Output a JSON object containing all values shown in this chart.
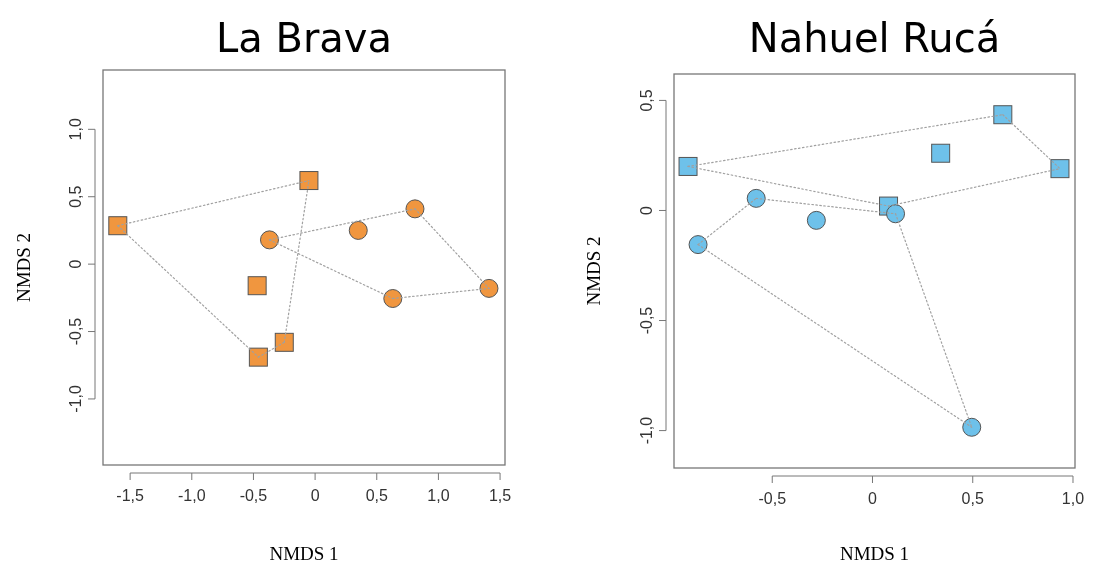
{
  "chart_data": [
    {
      "type": "scatter",
      "title": "La Brava",
      "xlabel": "NMDS 1",
      "ylabel": "NMDS 2",
      "xlim": [
        -1.72,
        1.54
      ],
      "ylim": [
        -1.49,
        1.44
      ],
      "xticks": [
        {
          "value": -1.5,
          "label": "-1,5"
        },
        {
          "value": -1,
          "label": "-1,0"
        },
        {
          "value": -0.5,
          "label": "-0,5"
        },
        0,
        {
          "value": 0.5,
          "label": "0,5"
        },
        {
          "value": 1,
          "label": "1,0"
        },
        {
          "value": 1.5,
          "label": "1,5"
        }
      ],
      "yticks": [
        {
          "value": -1,
          "label": "-1,0"
        },
        {
          "value": -0.5,
          "label": "-0,5"
        },
        0,
        {
          "value": 0.5,
          "label": "0,5"
        },
        {
          "value": 1,
          "label": "1,0"
        }
      ],
      "grid": false,
      "series": [
        {
          "type": "line",
          "color": "#a0a0a0",
          "line_style": "dotted",
          "x": [
            -1.6,
            -0.05
          ],
          "values": [
            0.285,
            0.62
          ]
        },
        {
          "type": "line",
          "color": "#a0a0a0",
          "line_style": "dotted",
          "x": [
            -0.25,
            -0.05
          ],
          "values": [
            -0.58,
            0.62
          ]
        },
        {
          "type": "line",
          "color": "#a0a0a0",
          "line_style": "dotted",
          "x": [
            -0.46,
            -0.25
          ],
          "values": [
            -0.69,
            -0.58
          ]
        },
        {
          "type": "line",
          "color": "#a0a0a0",
          "line_style": "dotted",
          "x": [
            -1.6,
            -0.46
          ],
          "values": [
            0.285,
            -0.69
          ]
        },
        {
          "type": "line",
          "color": "#a0a0a0",
          "line_style": "dotted",
          "x": [
            -0.37,
            0.81
          ],
          "values": [
            0.18,
            0.41
          ]
        },
        {
          "type": "line",
          "color": "#a0a0a0",
          "line_style": "dotted",
          "x": [
            0.81,
            1.41
          ],
          "values": [
            0.41,
            -0.18
          ]
        },
        {
          "type": "line",
          "color": "#a0a0a0",
          "line_style": "dotted",
          "x": [
            0.63,
            1.41
          ],
          "values": [
            -0.255,
            -0.18
          ]
        },
        {
          "type": "line",
          "color": "#a0a0a0",
          "line_style": "dotted",
          "x": [
            -0.37,
            0.63
          ],
          "values": [
            0.18,
            -0.255
          ]
        },
        {
          "color": "#f0963f",
          "marker": "square",
          "x": [
            -1.6,
            -0.05,
            -0.47,
            -0.25,
            -0.46
          ],
          "values": [
            0.285,
            0.62,
            -0.16,
            -0.58,
            -0.69
          ]
        },
        {
          "color": "#f0963f",
          "marker": "circle",
          "x": [
            -0.37,
            0.35,
            0.81,
            1.41,
            0.63
          ],
          "values": [
            0.18,
            0.25,
            0.41,
            -0.18,
            -0.255
          ]
        }
      ]
    },
    {
      "type": "scatter",
      "title": "Nahuel Rucá",
      "xlabel": "NMDS 1",
      "ylabel": "NMDS 2",
      "xlim": [
        -0.99,
        1.01
      ],
      "ylim": [
        -1.17,
        0.62
      ],
      "xticks": [
        {
          "value": -0.5,
          "label": "-0,5"
        },
        0,
        {
          "value": 0.5,
          "label": "0,5"
        },
        {
          "value": 1,
          "label": "1,0"
        }
      ],
      "yticks": [
        {
          "value": -1,
          "label": "-1,0"
        },
        {
          "value": -0.5,
          "label": "-0,5"
        },
        0,
        {
          "value": 0.5,
          "label": "0,5"
        }
      ],
      "grid": false,
      "series": [
        {
          "type": "line",
          "color": "#a0a0a0",
          "line_style": "dotted",
          "x": [
            -0.92,
            0.65
          ],
          "values": [
            0.2,
            0.435
          ]
        },
        {
          "type": "line",
          "color": "#a0a0a0",
          "line_style": "dotted",
          "x": [
            0.65,
            0.935
          ],
          "values": [
            0.435,
            0.19
          ]
        },
        {
          "type": "line",
          "color": "#a0a0a0",
          "line_style": "dotted",
          "x": [
            0.08,
            0.935
          ],
          "values": [
            0.02,
            0.19
          ]
        },
        {
          "type": "line",
          "color": "#a0a0a0",
          "line_style": "dotted",
          "x": [
            -0.92,
            0.08
          ],
          "values": [
            0.2,
            0.02
          ]
        },
        {
          "type": "line",
          "color": "#a0a0a0",
          "line_style": "dotted",
          "x": [
            -0.87,
            -0.58
          ],
          "values": [
            -0.155,
            0.055
          ]
        },
        {
          "type": "line",
          "color": "#a0a0a0",
          "line_style": "dotted",
          "x": [
            -0.58,
            0.115
          ],
          "values": [
            0.055,
            -0.015
          ]
        },
        {
          "type": "line",
          "color": "#a0a0a0",
          "line_style": "dotted",
          "x": [
            0.115,
            0.495
          ],
          "values": [
            -0.015,
            -0.985
          ]
        },
        {
          "type": "line",
          "color": "#a0a0a0",
          "line_style": "dotted",
          "x": [
            -0.87,
            0.495
          ],
          "values": [
            -0.155,
            -0.985
          ]
        },
        {
          "color": "#6ec1ea",
          "marker": "square",
          "x": [
            -0.92,
            0.65,
            0.34,
            0.935,
            0.08
          ],
          "values": [
            0.2,
            0.435,
            0.26,
            0.19,
            0.02
          ]
        },
        {
          "color": "#6ec1ea",
          "marker": "circle",
          "x": [
            -0.87,
            -0.58,
            -0.28,
            0.115,
            0.495
          ],
          "values": [
            -0.155,
            0.055,
            -0.045,
            -0.015,
            -0.985
          ]
        }
      ]
    }
  ]
}
